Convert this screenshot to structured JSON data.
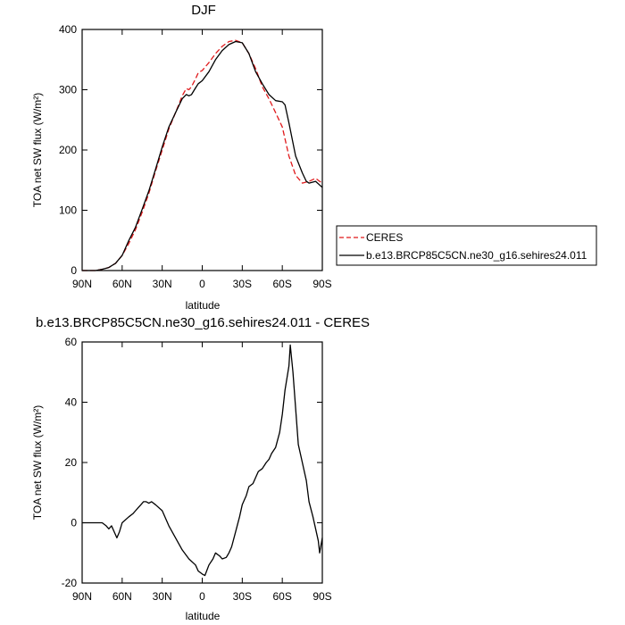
{
  "colors": {
    "model": "#000000",
    "obs": "#e0191b",
    "frame": "#000000"
  },
  "chart_data": [
    {
      "type": "line",
      "title": "DJF",
      "xlabel": "latitude",
      "ylabel": "TOA net SW flux (W/m²)",
      "xlim": [
        90,
        -90
      ],
      "ylim": [
        0,
        400
      ],
      "x_ticks": [
        90,
        60,
        30,
        0,
        -30,
        -60,
        -90
      ],
      "x_tick_labels": [
        "90N",
        "60N",
        "30N",
        "0",
        "30S",
        "60S",
        "90S"
      ],
      "y_ticks": [
        0,
        100,
        200,
        300,
        400
      ],
      "y_tick_labels": [
        "0",
        "100",
        "200",
        "300",
        "400"
      ],
      "grid": false,
      "legend": {
        "placement": "right-outside"
      },
      "series": [
        {
          "name": "CERES",
          "style": "dashed",
          "color": "#e0191b",
          "x": [
            90,
            85,
            80,
            75,
            70,
            65,
            60,
            55,
            50,
            45,
            40,
            35,
            30,
            25,
            20,
            15,
            12,
            10,
            8,
            5,
            3,
            0,
            -5,
            -10,
            -15,
            -20,
            -25,
            -30,
            -35,
            -40,
            -45,
            -50,
            -55,
            -60,
            -65,
            -70,
            -75,
            -80,
            -85,
            -88,
            -90
          ],
          "y": [
            0,
            0,
            0,
            2,
            5,
            12,
            25,
            45,
            68,
            97,
            128,
            165,
            200,
            235,
            262,
            290,
            302,
            300,
            305,
            318,
            328,
            332,
            345,
            360,
            372,
            380,
            382,
            378,
            360,
            335,
            305,
            285,
            262,
            238,
            190,
            158,
            145,
            148,
            153,
            148,
            145
          ]
        },
        {
          "name": "b.e13.BRCP85C5CN.ne30_g16.sehires24.011",
          "style": "solid",
          "color": "#000000",
          "x": [
            90,
            85,
            80,
            75,
            70,
            65,
            60,
            55,
            50,
            45,
            40,
            35,
            30,
            25,
            20,
            15,
            12,
            10,
            8,
            5,
            3,
            0,
            -5,
            -10,
            -15,
            -20,
            -25,
            -30,
            -35,
            -40,
            -45,
            -50,
            -55,
            -60,
            -62,
            -65,
            -70,
            -75,
            -78,
            -80,
            -85,
            -88,
            -90
          ],
          "y": [
            0,
            0,
            0,
            2,
            5,
            12,
            25,
            50,
            72,
            102,
            132,
            168,
            205,
            238,
            262,
            285,
            292,
            290,
            292,
            303,
            310,
            315,
            330,
            350,
            365,
            375,
            380,
            378,
            360,
            330,
            310,
            292,
            282,
            280,
            275,
            245,
            190,
            162,
            148,
            145,
            148,
            142,
            138
          ]
        }
      ]
    },
    {
      "type": "line",
      "title": "b.e13.BRCP85C5CN.ne30_g16.sehires24.011 - CERES",
      "xlabel": "latitude",
      "ylabel": "TOA net SW flux (W/m²)",
      "xlim": [
        90,
        -90
      ],
      "ylim": [
        -20,
        60
      ],
      "x_ticks": [
        90,
        60,
        30,
        0,
        -30,
        -60,
        -90
      ],
      "x_tick_labels": [
        "90N",
        "60N",
        "30N",
        "0",
        "30S",
        "60S",
        "90S"
      ],
      "y_ticks": [
        -20,
        0,
        20,
        40,
        60
      ],
      "y_tick_labels": [
        "-20",
        "0",
        "20",
        "40",
        "60"
      ],
      "grid": false,
      "series": [
        {
          "style": "solid",
          "color": "#000000",
          "x": [
            90,
            75,
            72,
            70,
            68,
            66,
            64,
            62,
            60,
            55,
            52,
            50,
            48,
            46,
            44,
            42,
            40,
            38,
            35,
            30,
            25,
            20,
            15,
            10,
            5,
            3,
            0,
            -2,
            -5,
            -8,
            -10,
            -13,
            -15,
            -18,
            -20,
            -22,
            -25,
            -28,
            -30,
            -33,
            -35,
            -38,
            -40,
            -42,
            -45,
            -48,
            -50,
            -52,
            -55,
            -58,
            -60,
            -62,
            -65,
            -66,
            -68,
            -70,
            -72,
            -75,
            -78,
            -80,
            -83,
            -85,
            -87,
            -88,
            -90
          ],
          "y": [
            0,
            0,
            -1,
            -2,
            -1,
            -3,
            -5,
            -3,
            0,
            2,
            3,
            4,
            5,
            6,
            7,
            7,
            6.5,
            7,
            6,
            4,
            -1,
            -5,
            -9,
            -12,
            -14,
            -16,
            -17,
            -17.5,
            -14,
            -12,
            -10,
            -11,
            -12,
            -11.5,
            -10,
            -8,
            -3,
            2,
            6,
            9,
            12,
            13,
            15,
            17,
            18,
            20,
            21,
            23,
            25,
            30,
            36,
            44,
            52,
            59,
            50,
            38,
            26,
            20,
            14,
            7,
            2,
            -2,
            -6,
            -10,
            -5
          ]
        }
      ]
    }
  ]
}
